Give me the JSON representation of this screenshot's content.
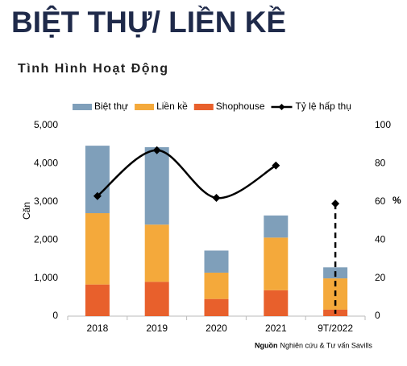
{
  "header": {
    "title": "BIỆT THỰ/ LIỀN KỀ",
    "subtitle": "Tình Hình Hoạt Động"
  },
  "chart_data": {
    "type": "bar",
    "categories": [
      "2018",
      "2019",
      "2020",
      "2021",
      "9T/2022"
    ],
    "y_label": "Căn",
    "y2_label": "%",
    "ylim": [
      0,
      5000
    ],
    "yticks": [
      0,
      {
        "value": 1000,
        "label": "1,000"
      },
      {
        "value": 2000,
        "label": "2,000"
      },
      {
        "value": 3000,
        "label": "3,000"
      },
      {
        "value": 4000,
        "label": "4,000"
      },
      {
        "value": 5000,
        "label": "5,000"
      }
    ],
    "y2lim": [
      0,
      100
    ],
    "y2ticks": [
      0,
      20,
      40,
      60,
      80,
      100
    ],
    "stacked": true,
    "series": [
      {
        "name": "Shophouse",
        "color": "#e8602c",
        "values": [
          830,
          900,
          450,
          680,
          170
        ]
      },
      {
        "name": "Liền kề",
        "color": "#f4a93b",
        "values": [
          1870,
          1500,
          690,
          1380,
          820
        ]
      },
      {
        "name": "Biệt thự",
        "color": "#7f9fba",
        "values": [
          1770,
          2030,
          580,
          580,
          290
        ]
      },
      {
        "name": "Tỷ lệ hấp thụ",
        "color": "#000000",
        "type": "line",
        "axis": "y2",
        "values": [
          63,
          87,
          62,
          79,
          59
        ]
      }
    ],
    "legend_order": [
      2,
      1,
      0,
      3
    ],
    "source_label": "Nguồn",
    "source": "Nghiên cứu & Tư vấn Savills"
  }
}
